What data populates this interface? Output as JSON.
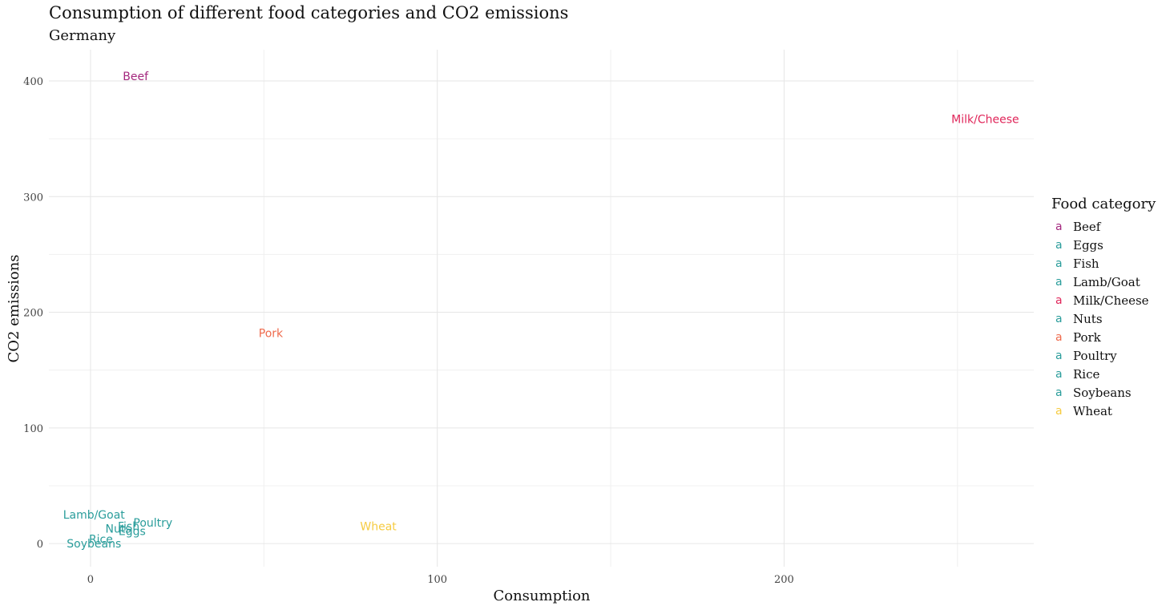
{
  "chart_data": {
    "type": "scatter",
    "title": "Consumption of different food categories and CO2 emissions",
    "subtitle": "Germany",
    "xlabel": "Consumption",
    "ylabel": "CO2 emissions",
    "xlim": [
      -12,
      272
    ],
    "ylim": [
      -20,
      427
    ],
    "x_ticks": [
      0,
      100,
      200
    ],
    "y_ticks": [
      0,
      100,
      200,
      300,
      400
    ],
    "legend_title": "Food category",
    "legend_position": "right",
    "legend_symbol": "a",
    "grid": true,
    "points": [
      {
        "label": "Beef",
        "x": 13,
        "y": 404,
        "color": "#a4287e"
      },
      {
        "label": "Eggs",
        "x": 12,
        "y": 11,
        "color": "#2a9d9b"
      },
      {
        "label": "Fish",
        "x": 11,
        "y": 15,
        "color": "#2a9d9b"
      },
      {
        "label": "Lamb/Goat",
        "x": 1,
        "y": 25,
        "color": "#2a9d9b"
      },
      {
        "label": "Milk/Cheese",
        "x": 258,
        "y": 367,
        "color": "#e0265a"
      },
      {
        "label": "Nuts",
        "x": 8,
        "y": 13,
        "color": "#2a9d9b"
      },
      {
        "label": "Pork",
        "x": 52,
        "y": 182,
        "color": "#ef6a4c"
      },
      {
        "label": "Poultry",
        "x": 18,
        "y": 18,
        "color": "#2a9d9b"
      },
      {
        "label": "Rice",
        "x": 3,
        "y": 4,
        "color": "#2a9d9b"
      },
      {
        "label": "Soybeans",
        "x": 1,
        "y": 0,
        "color": "#2a9d9b"
      },
      {
        "label": "Wheat",
        "x": 83,
        "y": 15,
        "color": "#f6cb40"
      }
    ]
  }
}
